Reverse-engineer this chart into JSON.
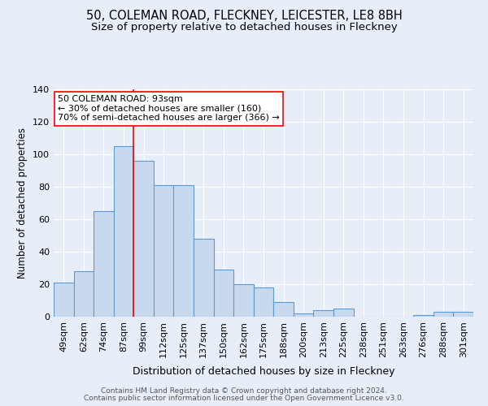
{
  "title": "50, COLEMAN ROAD, FLECKNEY, LEICESTER, LE8 8BH",
  "subtitle": "Size of property relative to detached houses in Fleckney",
  "xlabel": "Distribution of detached houses by size in Fleckney",
  "ylabel": "Number of detached properties",
  "categories": [
    "49sqm",
    "62sqm",
    "74sqm",
    "87sqm",
    "99sqm",
    "112sqm",
    "125sqm",
    "137sqm",
    "150sqm",
    "162sqm",
    "175sqm",
    "188sqm",
    "200sqm",
    "213sqm",
    "225sqm",
    "238sqm",
    "251sqm",
    "263sqm",
    "276sqm",
    "288sqm",
    "301sqm"
  ],
  "values": [
    21,
    28,
    65,
    105,
    96,
    81,
    81,
    48,
    29,
    20,
    18,
    9,
    2,
    4,
    5,
    0,
    0,
    0,
    1,
    3,
    3
  ],
  "bar_color": "#c9d9ed",
  "bar_edge_color": "#5b9bd5",
  "red_line_x": 3.5,
  "annotation_text": "50 COLEMAN ROAD: 93sqm\n← 30% of detached houses are smaller (160)\n70% of semi-detached houses are larger (366) →",
  "annotation_box_color": "white",
  "annotation_box_edge": "red",
  "footer1": "Contains HM Land Registry data © Crown copyright and database right 2024.",
  "footer2": "Contains public sector information licensed under the Open Government Licence v3.0.",
  "background_color": "#e8eef8",
  "ylim": [
    0,
    140
  ],
  "title_fontsize": 10.5,
  "subtitle_fontsize": 9.5,
  "annot_fontsize": 8.0,
  "footer_fontsize": 6.5
}
